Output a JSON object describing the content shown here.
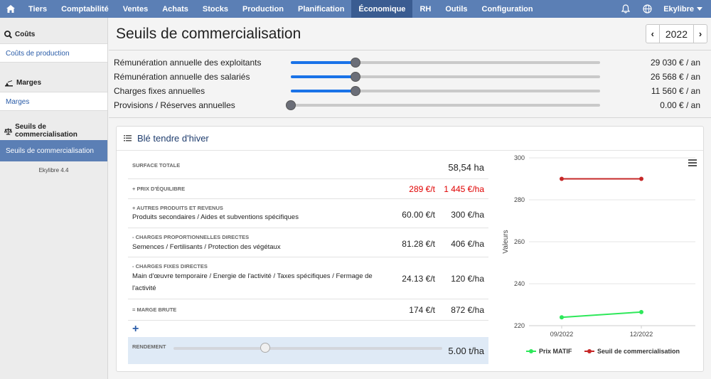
{
  "nav": {
    "items": [
      "Tiers",
      "Comptabilité",
      "Ventes",
      "Achats",
      "Stocks",
      "Production",
      "Planification",
      "Économique",
      "RH",
      "Outils",
      "Configuration"
    ],
    "active": "Économique",
    "user": "Ekylibre"
  },
  "sidebar": {
    "sections": [
      {
        "heading": "Coûts",
        "link": "Coûts de production"
      },
      {
        "heading": "Marges",
        "link": "Marges"
      },
      {
        "heading": "Seuils de commercialisation",
        "link": "Seuils de commercialisation"
      }
    ],
    "version": "Ekylibre 4.4"
  },
  "page": {
    "title": "Seuils de commercialisation",
    "year": "2022"
  },
  "params": [
    {
      "label": "Rémunération annuelle des exploitants",
      "value": "29 030 € / an",
      "level": 0.21
    },
    {
      "label": "Rémunération annuelle des salariés",
      "value": "26 568 € / an",
      "level": 0.21
    },
    {
      "label": "Charges fixes annuelles",
      "value": "11 560 € / an",
      "level": 0.21
    },
    {
      "label": "Provisions / Réserves annuelles",
      "value": "0.00 € / an",
      "level": 0.0
    }
  ],
  "card": {
    "title": "Blé tendre d'hiver",
    "rows": {
      "surface": {
        "caption": "Surface totale",
        "value": "58,54 ha"
      },
      "prix": {
        "caption": "+ Prix d'équilibre",
        "v1": "289 €/t",
        "v2": "1 445 €/ha"
      },
      "autres": {
        "caption": "+ Autres produits et revenus",
        "desc": "Produits secondaires / Aides et subventions spécifiques",
        "v1": "60.00 €/t",
        "v2": "300 €/ha"
      },
      "charges_prop": {
        "caption": "- Charges proportionnelles directes",
        "desc": "Semences / Fertilisants / Protection des végétaux",
        "v1": "81.28 €/t",
        "v2": "406 €/ha"
      },
      "charges_fixes": {
        "caption": "- Charges fixes directes",
        "desc": "Main d'œuvre temporaire / Energie de l'activité / Taxes spécifiques / Fermage de l'activité",
        "v1": "24.13 €/t",
        "v2": "120 €/ha"
      },
      "marge": {
        "caption": "= Marge brute",
        "v1": "174 €/t",
        "v2": "872 €/ha"
      },
      "rendement": {
        "caption": "Rendement",
        "value": "5.00 t/ha",
        "level": 0.34
      }
    }
  },
  "chart_data": {
    "type": "line",
    "categories": [
      "09/2022",
      "12/2022"
    ],
    "ylabel": "Valeurs",
    "ylim": [
      220,
      300
    ],
    "yticks": [
      "300",
      "280",
      "260",
      "240",
      "220"
    ],
    "series": [
      {
        "name": "Prix MATIF",
        "values": [
          224,
          226.5
        ],
        "color": "#2ee85a"
      },
      {
        "name": "Seuil de commercialisation",
        "values": [
          290,
          290
        ],
        "color": "#c62828"
      }
    ],
    "legend": "bottom"
  },
  "colors": {
    "nav": "#5b7fb5",
    "accent": "#1a73e8",
    "red": "#e00000"
  }
}
